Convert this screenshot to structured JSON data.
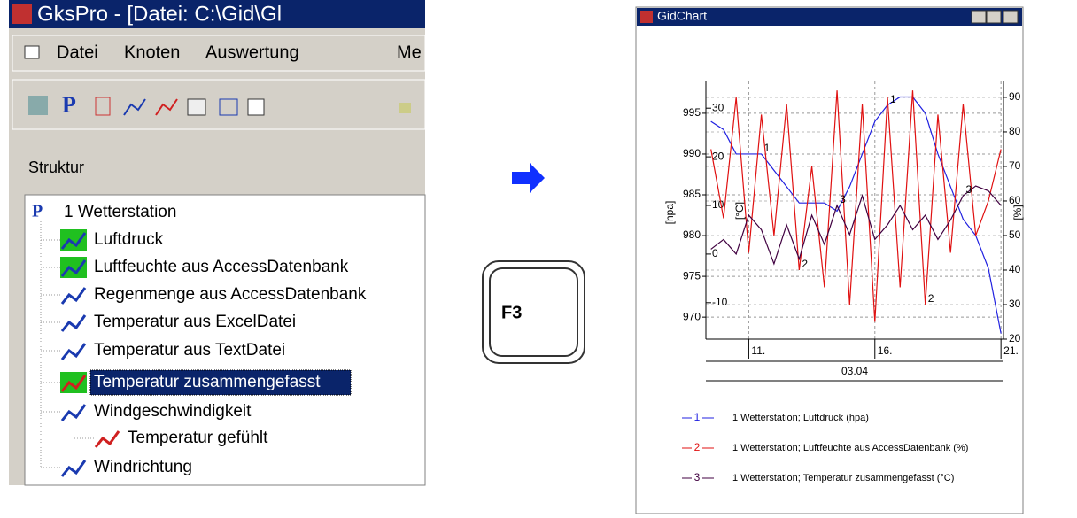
{
  "gkspro": {
    "title": "GksPro - [Datei: C:\\Gid\\Gl",
    "menu": [
      "Datei",
      "Knoten",
      "Auswertung",
      "Me"
    ],
    "panel_title": "Struktur",
    "tree": [
      "1 Wetterstation",
      "Luftdruck",
      "Luftfeuchte aus AccessDatenbank",
      "Regenmenge aus AccessDatenbank",
      "Temperatur aus ExcelDatei",
      "Temperatur aus TextDatei",
      "Temperatur zusammengefasst",
      "Windgeschwindigkeit",
      "Temperatur gefühlt",
      "Windrichtung"
    ]
  },
  "key": "F3",
  "chart_window": {
    "title": "GidChart"
  },
  "chart_data": {
    "type": "line",
    "x": [
      9.5,
      10,
      10.5,
      11,
      11.5,
      12,
      12.5,
      13,
      13.5,
      14,
      14.5,
      15,
      15.5,
      16,
      16.5,
      17,
      17.5,
      18,
      18.5,
      19,
      19.5,
      20,
      20.5,
      21
    ],
    "xlim": [
      9.3,
      21.1
    ],
    "xticks": [
      {
        "value": 11,
        "label": "11."
      },
      {
        "value": 16,
        "label": "16."
      },
      {
        "value": 21,
        "label": "21."
      }
    ],
    "x_group_label": "03.04",
    "ylabel": "[hpa]",
    "ylim": [
      967.3,
      998.9
    ],
    "yticks": [
      970,
      975,
      980,
      985,
      990,
      995
    ],
    "y2label": "[%]",
    "y2lim": [
      20,
      94.6
    ],
    "y2ticks": [
      20,
      30,
      40,
      50,
      60,
      70,
      80,
      90
    ],
    "y3label": "[°C]",
    "y3lim": [
      -17.5,
      35.5
    ],
    "y3ticks": [
      -10,
      0,
      10,
      20,
      30
    ],
    "grid": true,
    "series": [
      {
        "name": "1 Wetterstation; Luftdruck (hpa)",
        "marker": "1",
        "color": "#2020e0",
        "axis": "y",
        "values": [
          994,
          993,
          990,
          990,
          990,
          988,
          986,
          984,
          984,
          984,
          983,
          986,
          990,
          994,
          996,
          997,
          997,
          995,
          990,
          986,
          982,
          980,
          976,
          968
        ]
      },
      {
        "name": "1 Wetterstation; Luftfeuchte aus AccessDatenbank (%)",
        "marker": "2",
        "color": "#e01010",
        "axis": "y2",
        "values": [
          75,
          55,
          90,
          45,
          85,
          50,
          88,
          40,
          70,
          35,
          92,
          30,
          88,
          25,
          90,
          35,
          92,
          30,
          85,
          45,
          88,
          50,
          60,
          75
        ]
      },
      {
        "name": "1 Wetterstation; Temperatur zusammengefasst (°C)",
        "marker": "3",
        "color": "#400040",
        "axis": "y3",
        "values": [
          1,
          3,
          0,
          8,
          5,
          -2,
          6,
          -1,
          8,
          2,
          10,
          4,
          12,
          3,
          6,
          10,
          5,
          8,
          3,
          7,
          12,
          14,
          13,
          10
        ]
      }
    ]
  }
}
